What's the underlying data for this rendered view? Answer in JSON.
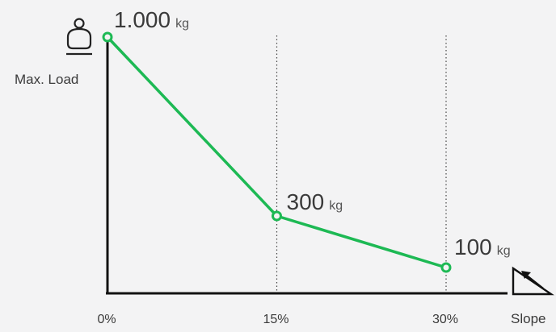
{
  "chart_data": {
    "type": "line",
    "x": [
      0,
      15,
      30
    ],
    "x_tick_labels": [
      "0%",
      "15%",
      "30%"
    ],
    "series": [
      {
        "values": [
          1000,
          300,
          100
        ],
        "color": "#1db954"
      }
    ],
    "data_labels": [
      {
        "value": "1.000",
        "unit": "kg"
      },
      {
        "value": "300",
        "unit": "kg"
      },
      {
        "value": "100",
        "unit": "kg"
      }
    ],
    "ylabel": "Max. Load",
    "xlabel": "Slope",
    "xlim": [
      0,
      30
    ],
    "ylim": [
      0,
      1000
    ],
    "grid": "vertical dotted at 15% and 30%",
    "axis_color": "#111111",
    "icons": {
      "y_axis": "load-weight-icon",
      "x_axis": "slope-triangle-icon"
    }
  }
}
